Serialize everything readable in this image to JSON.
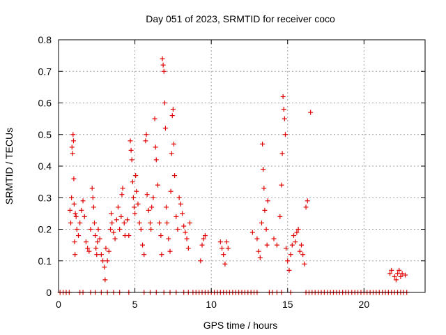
{
  "chart_data": {
    "type": "scatter",
    "title": "Day 051 of 2023, SRMTID for receiver coco",
    "xlabel": "GPS time / hours",
    "ylabel": "SRMTID / TECUs",
    "xlim": [
      0,
      24
    ],
    "ylim": [
      0,
      0.8
    ],
    "xticks": [
      0,
      5,
      10,
      15,
      20
    ],
    "yticks": [
      0,
      0.1,
      0.2,
      0.3,
      0.4,
      0.5,
      0.6,
      0.7,
      0.8
    ],
    "xtick_labels": [
      "0",
      "5",
      "10",
      "15",
      "20"
    ],
    "ytick_labels": [
      "0",
      "0.1",
      "0.2",
      "0.3",
      "0.4",
      "0.5",
      "0.6",
      "0.7",
      "0.8"
    ],
    "grid": true,
    "marker": "+",
    "marker_color": "#e00000",
    "series": [
      {
        "name": "SRMTID",
        "points": [
          [
            0.1,
            0
          ],
          [
            0.3,
            0
          ],
          [
            0.5,
            0
          ],
          [
            0.7,
            0
          ],
          [
            1.4,
            0
          ],
          [
            1.6,
            0
          ],
          [
            2.1,
            0
          ],
          [
            2.4,
            0
          ],
          [
            2.8,
            0
          ],
          [
            3.2,
            0
          ],
          [
            3.6,
            0
          ],
          [
            4.0,
            0
          ],
          [
            4.6,
            0
          ],
          [
            5.6,
            0
          ],
          [
            6.0,
            0
          ],
          [
            6.4,
            0
          ],
          [
            6.9,
            0
          ],
          [
            7.3,
            0
          ],
          [
            7.7,
            0
          ],
          [
            8.2,
            0
          ],
          [
            8.5,
            0
          ],
          [
            8.8,
            0
          ],
          [
            9.0,
            0
          ],
          [
            9.2,
            0
          ],
          [
            9.4,
            0
          ],
          [
            9.6,
            0
          ],
          [
            9.8,
            0
          ],
          [
            10.0,
            0
          ],
          [
            10.2,
            0
          ],
          [
            10.4,
            0
          ],
          [
            10.6,
            0
          ],
          [
            10.8,
            0
          ],
          [
            11.0,
            0
          ],
          [
            11.2,
            0
          ],
          [
            11.4,
            0
          ],
          [
            11.6,
            0
          ],
          [
            11.8,
            0
          ],
          [
            12.0,
            0
          ],
          [
            12.2,
            0
          ],
          [
            12.4,
            0
          ],
          [
            12.6,
            0
          ],
          [
            12.8,
            0
          ],
          [
            13.0,
            0
          ],
          [
            13.8,
            0
          ],
          [
            14.0,
            0
          ],
          [
            14.3,
            0
          ],
          [
            14.6,
            0
          ],
          [
            15.2,
            0
          ],
          [
            16.2,
            0
          ],
          [
            16.4,
            0
          ],
          [
            16.6,
            0
          ],
          [
            16.8,
            0
          ],
          [
            17.0,
            0
          ],
          [
            17.2,
            0
          ],
          [
            17.4,
            0
          ],
          [
            17.6,
            0
          ],
          [
            17.8,
            0
          ],
          [
            18.0,
            0
          ],
          [
            18.2,
            0
          ],
          [
            18.4,
            0
          ],
          [
            18.6,
            0
          ],
          [
            18.8,
            0
          ],
          [
            19.0,
            0
          ],
          [
            19.2,
            0
          ],
          [
            19.4,
            0
          ],
          [
            19.6,
            0
          ],
          [
            19.8,
            0
          ],
          [
            20.0,
            0
          ],
          [
            20.2,
            0
          ],
          [
            20.4,
            0
          ],
          [
            20.6,
            0
          ],
          [
            20.8,
            0
          ],
          [
            21.0,
            0
          ],
          [
            21.2,
            0
          ],
          [
            21.4,
            0
          ],
          [
            21.6,
            0
          ],
          [
            21.8,
            0
          ],
          [
            22.0,
            0
          ],
          [
            22.2,
            0
          ],
          [
            22.4,
            0
          ],
          [
            22.6,
            0
          ],
          [
            22.8,
            0
          ],
          [
            0.75,
            0.26
          ],
          [
            0.8,
            0.22
          ],
          [
            0.85,
            0.3
          ],
          [
            0.88,
            0.46
          ],
          [
            0.92,
            0.44
          ],
          [
            0.95,
            0.5
          ],
          [
            0.98,
            0.48
          ],
          [
            1.0,
            0.36
          ],
          [
            1.02,
            0.28
          ],
          [
            1.05,
            0.16
          ],
          [
            1.08,
            0.12
          ],
          [
            1.1,
            0.25
          ],
          [
            1.15,
            0.24
          ],
          [
            1.2,
            0.2
          ],
          [
            1.3,
            0.18
          ],
          [
            1.4,
            0.22
          ],
          [
            1.5,
            0.26
          ],
          [
            1.6,
            0.29
          ],
          [
            1.7,
            0.24
          ],
          [
            1.8,
            0.16
          ],
          [
            1.9,
            0.14
          ],
          [
            2.0,
            0.13
          ],
          [
            2.1,
            0.2
          ],
          [
            2.2,
            0.33
          ],
          [
            2.25,
            0.3
          ],
          [
            2.3,
            0.27
          ],
          [
            2.35,
            0.22
          ],
          [
            2.4,
            0.18
          ],
          [
            2.45,
            0.14
          ],
          [
            2.5,
            0.12
          ],
          [
            2.55,
            0.16
          ],
          [
            2.6,
            0.2
          ],
          [
            2.7,
            0.17
          ],
          [
            2.8,
            0.12
          ],
          [
            2.9,
            0.1
          ],
          [
            3.0,
            0.08
          ],
          [
            3.05,
            0.04
          ],
          [
            3.1,
            0.14
          ],
          [
            3.2,
            0.1
          ],
          [
            3.3,
            0.13
          ],
          [
            3.4,
            0.2
          ],
          [
            3.45,
            0.25
          ],
          [
            3.5,
            0.22
          ],
          [
            3.6,
            0.19
          ],
          [
            3.7,
            0.17
          ],
          [
            3.8,
            0.23
          ],
          [
            3.9,
            0.27
          ],
          [
            4.0,
            0.2
          ],
          [
            4.1,
            0.24
          ],
          [
            4.15,
            0.31
          ],
          [
            4.2,
            0.33
          ],
          [
            4.3,
            0.22
          ],
          [
            4.35,
            0.18
          ],
          [
            4.5,
            0.23
          ],
          [
            4.6,
            0.18
          ],
          [
            4.7,
            0.48
          ],
          [
            4.75,
            0.45
          ],
          [
            4.8,
            0.42
          ],
          [
            4.85,
            0.35
          ],
          [
            4.9,
            0.3
          ],
          [
            4.95,
            0.27
          ],
          [
            5.0,
            0.25
          ],
          [
            5.05,
            0.37
          ],
          [
            5.1,
            0.32
          ],
          [
            5.2,
            0.28
          ],
          [
            5.3,
            0.22
          ],
          [
            5.4,
            0.2
          ],
          [
            5.5,
            0.15
          ],
          [
            5.6,
            0.12
          ],
          [
            5.7,
            0.48
          ],
          [
            5.75,
            0.5
          ],
          [
            5.8,
            0.31
          ],
          [
            5.9,
            0.26
          ],
          [
            6.0,
            0.22
          ],
          [
            6.05,
            0.2
          ],
          [
            6.1,
            0.27
          ],
          [
            6.2,
            0.3
          ],
          [
            6.3,
            0.55
          ],
          [
            6.35,
            0.46
          ],
          [
            6.4,
            0.42
          ],
          [
            6.5,
            0.34
          ],
          [
            6.6,
            0.22
          ],
          [
            6.7,
            0.18
          ],
          [
            6.75,
            0.12
          ],
          [
            6.8,
            0.74
          ],
          [
            6.85,
            0.72
          ],
          [
            6.9,
            0.7
          ],
          [
            6.95,
            0.6
          ],
          [
            7.0,
            0.52
          ],
          [
            7.05,
            0.27
          ],
          [
            7.1,
            0.22
          ],
          [
            7.2,
            0.17
          ],
          [
            7.3,
            0.13
          ],
          [
            7.35,
            0.32
          ],
          [
            7.4,
            0.44
          ],
          [
            7.45,
            0.56
          ],
          [
            7.5,
            0.58
          ],
          [
            7.55,
            0.47
          ],
          [
            7.6,
            0.37
          ],
          [
            7.7,
            0.24
          ],
          [
            7.8,
            0.2
          ],
          [
            7.9,
            0.3
          ],
          [
            8.0,
            0.28
          ],
          [
            8.1,
            0.25
          ],
          [
            8.2,
            0.21
          ],
          [
            8.3,
            0.19
          ],
          [
            8.4,
            0.17
          ],
          [
            8.5,
            0.14
          ],
          [
            8.6,
            0.22
          ],
          [
            9.3,
            0.1
          ],
          [
            9.4,
            0.15
          ],
          [
            9.5,
            0.17
          ],
          [
            9.6,
            0.18
          ],
          [
            10.6,
            0.16
          ],
          [
            10.7,
            0.14
          ],
          [
            10.8,
            0.12
          ],
          [
            10.9,
            0.09
          ],
          [
            11.0,
            0.16
          ],
          [
            11.1,
            0.14
          ],
          [
            12.7,
            0.19
          ],
          [
            13.0,
            0.17
          ],
          [
            13.1,
            0.13
          ],
          [
            13.2,
            0.11
          ],
          [
            13.3,
            0.22
          ],
          [
            13.35,
            0.47
          ],
          [
            13.4,
            0.39
          ],
          [
            13.45,
            0.33
          ],
          [
            13.5,
            0.26
          ],
          [
            13.6,
            0.2
          ],
          [
            13.65,
            0.15
          ],
          [
            13.7,
            0.29
          ],
          [
            14.1,
            0.17
          ],
          [
            14.3,
            0.15
          ],
          [
            14.5,
            0.24
          ],
          [
            14.6,
            0.34
          ],
          [
            14.65,
            0.44
          ],
          [
            14.7,
            0.62
          ],
          [
            14.75,
            0.58
          ],
          [
            14.8,
            0.55
          ],
          [
            14.85,
            0.5
          ],
          [
            14.9,
            0.14
          ],
          [
            15.0,
            0.1
          ],
          [
            15.1,
            0.07
          ],
          [
            15.2,
            0.12
          ],
          [
            15.3,
            0.15
          ],
          [
            15.4,
            0.18
          ],
          [
            15.5,
            0.16
          ],
          [
            15.6,
            0.19
          ],
          [
            15.7,
            0.2
          ],
          [
            15.8,
            0.13
          ],
          [
            15.9,
            0.15
          ],
          [
            16.0,
            0.12
          ],
          [
            16.1,
            0.09
          ],
          [
            16.2,
            0.27
          ],
          [
            16.3,
            0.29
          ],
          [
            16.5,
            0.57
          ],
          [
            21.7,
            0.06
          ],
          [
            21.8,
            0.07
          ],
          [
            22.0,
            0.05
          ],
          [
            22.1,
            0.04
          ],
          [
            22.2,
            0.06
          ],
          [
            22.3,
            0.07
          ],
          [
            22.4,
            0.05
          ],
          [
            22.5,
            0.06
          ],
          [
            22.7,
            0.055
          ]
        ]
      }
    ]
  }
}
